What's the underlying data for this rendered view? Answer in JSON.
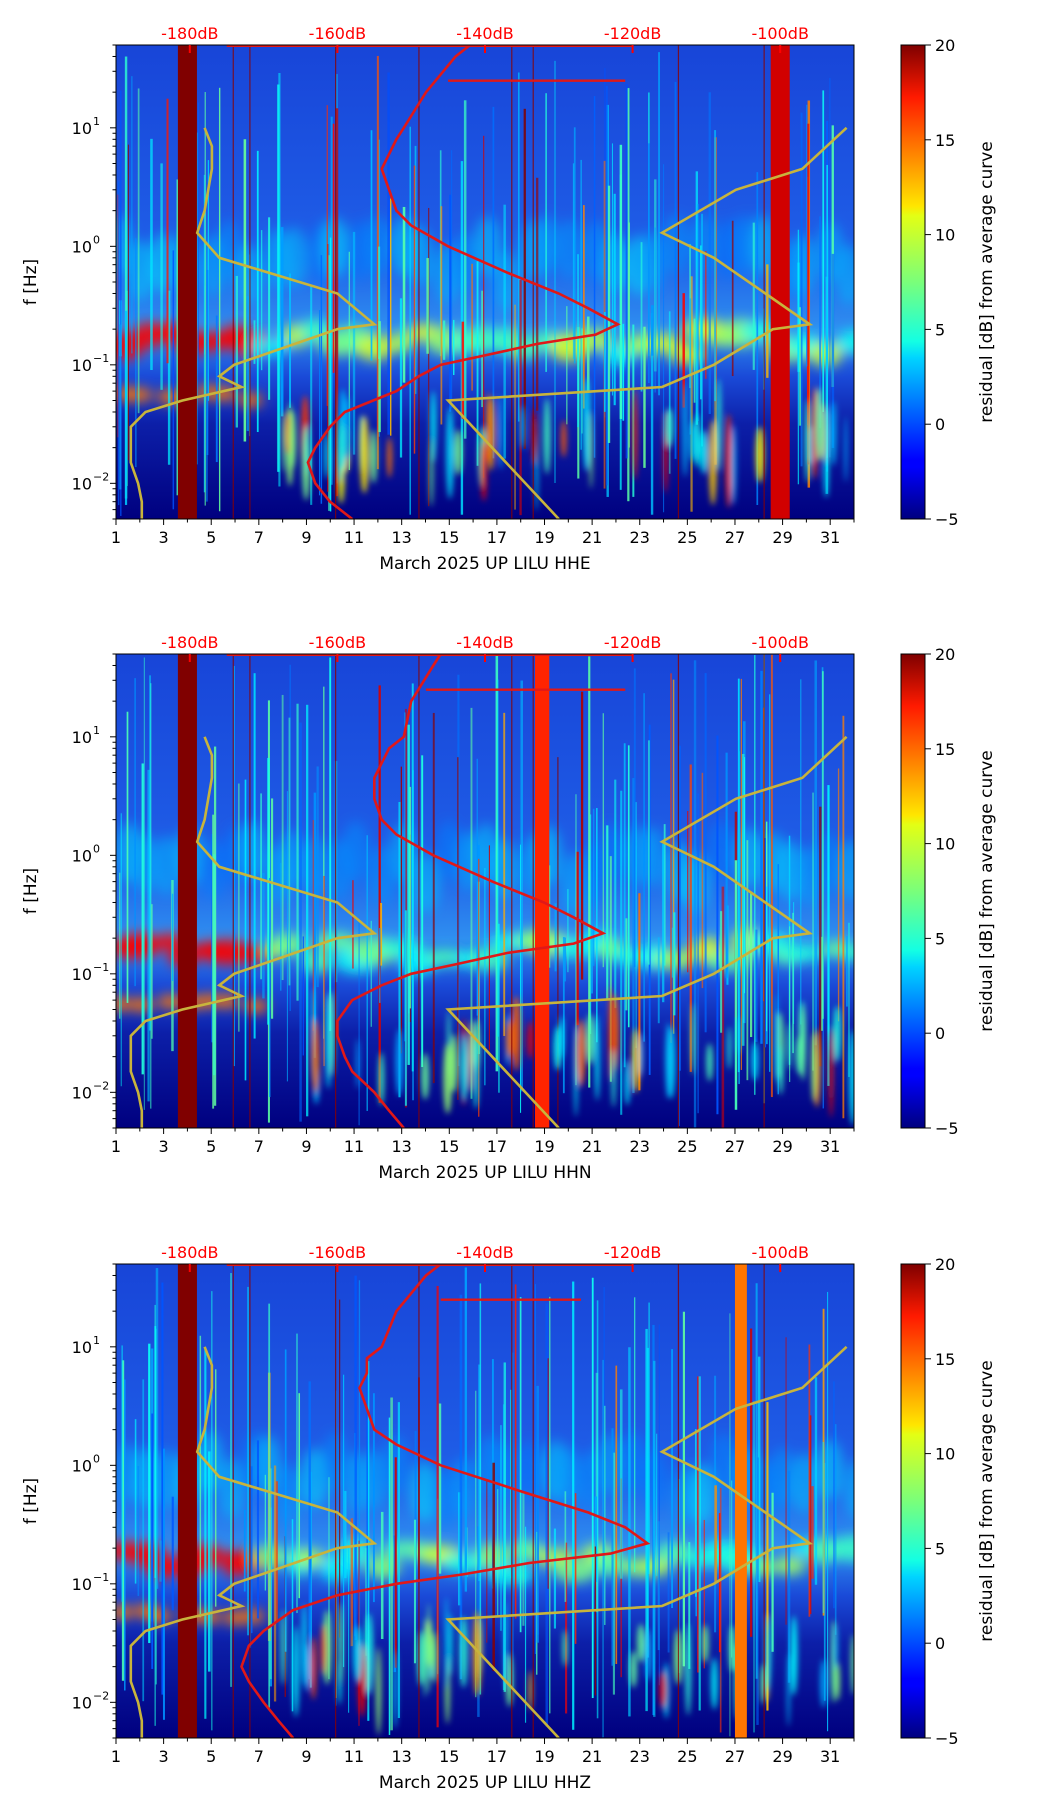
{
  "colors": {
    "accent": "#ff0000",
    "model": "#c8b43c",
    "psd": "#e01818",
    "background": "#ffffff"
  },
  "colormap": "jet",
  "chart_data": [
    {
      "type": "heatmap",
      "panel": "HHE",
      "xlabel": "March 2025 UP LILU  HHE",
      "ylabel": "f [Hz]",
      "colorbar_label": "residual [dB] from average curve",
      "colorbar_range": [
        -5,
        20
      ],
      "colorbar_ticks": [
        "−5",
        "0",
        "5",
        "10",
        "15",
        "20"
      ],
      "x_range": [
        1,
        32
      ],
      "x_ticks": [
        "1",
        "3",
        "5",
        "7",
        "9",
        "11",
        "13",
        "15",
        "17",
        "19",
        "21",
        "23",
        "25",
        "27",
        "29",
        "31"
      ],
      "y_range_hz": [
        0.005,
        50
      ],
      "y_ticks": [
        {
          "base": "10",
          "exp": "−2"
        },
        {
          "base": "10",
          "exp": "−1"
        },
        {
          "base": "10",
          "exp": "0"
        },
        {
          "base": "10",
          "exp": "1"
        }
      ],
      "top_axis_labels": [
        "-180dB",
        "-160dB",
        "-140dB",
        "-120dB",
        "-100dB"
      ],
      "top_axis_values_db": [
        -180,
        -160,
        -140,
        -120,
        -100
      ],
      "top_axis_range_db": [
        -190,
        -90
      ],
      "psd_curve": [
        [
          50,
          -142
        ],
        [
          40,
          -144
        ],
        [
          20,
          -148
        ],
        [
          10,
          -151
        ],
        [
          8,
          -152
        ],
        [
          6,
          -153
        ],
        [
          4.5,
          -154
        ],
        [
          3,
          -153
        ],
        [
          2,
          -152
        ],
        [
          1.5,
          -150
        ],
        [
          1,
          -145
        ],
        [
          0.6,
          -137
        ],
        [
          0.4,
          -130
        ],
        [
          0.3,
          -126
        ],
        [
          0.22,
          -122
        ],
        [
          0.18,
          -125
        ],
        [
          0.15,
          -133
        ],
        [
          0.12,
          -140
        ],
        [
          0.1,
          -146
        ],
        [
          0.08,
          -149
        ],
        [
          0.06,
          -152
        ],
        [
          0.04,
          -159
        ],
        [
          0.03,
          -161
        ],
        [
          0.02,
          -163
        ],
        [
          0.015,
          -164
        ],
        [
          0.01,
          -163
        ],
        [
          0.007,
          -161
        ],
        [
          0.005,
          -158
        ]
      ],
      "psd_spike": {
        "freq": 25,
        "from_db": -145,
        "to_db": -121
      },
      "model_low": [
        [
          10,
          -178
        ],
        [
          7,
          -177
        ],
        [
          4.5,
          -177
        ],
        [
          2,
          -178
        ],
        [
          1.3,
          -179
        ],
        [
          0.8,
          -176
        ],
        [
          0.4,
          -160
        ],
        [
          0.22,
          -155
        ],
        [
          0.2,
          -160
        ],
        [
          0.1,
          -174
        ],
        [
          0.08,
          -176
        ],
        [
          0.065,
          -173
        ],
        [
          0.05,
          -181
        ],
        [
          0.04,
          -186
        ],
        [
          0.03,
          -188
        ],
        [
          0.02,
          -188
        ],
        [
          0.015,
          -188
        ],
        [
          0.01,
          -187
        ],
        [
          0.007,
          -186.5
        ],
        [
          0.005,
          -186.5
        ]
      ],
      "model_high": [
        [
          10,
          -91
        ],
        [
          4.5,
          -97
        ],
        [
          3,
          -106
        ],
        [
          1.3,
          -116
        ],
        [
          0.8,
          -109
        ],
        [
          0.4,
          -102
        ],
        [
          0.22,
          -96
        ],
        [
          0.2,
          -101
        ],
        [
          0.1,
          -109
        ],
        [
          0.065,
          -116
        ],
        [
          0.05,
          -145
        ],
        [
          0.005,
          -130
        ]
      ],
      "hot_columns": [
        {
          "x": [
            3.6,
            4.4
          ],
          "intensity": 20
        },
        {
          "x": [
            28.5,
            29.3
          ],
          "intensity": 18
        }
      ]
    },
    {
      "type": "heatmap",
      "panel": "HHN",
      "xlabel": "March 2025 UP LILU  HHN",
      "ylabel": "f [Hz]",
      "colorbar_label": "residual [dB] from average curve",
      "colorbar_range": [
        -5,
        20
      ],
      "colorbar_ticks": [
        "−5",
        "0",
        "5",
        "10",
        "15",
        "20"
      ],
      "x_range": [
        1,
        32
      ],
      "x_ticks": [
        "1",
        "3",
        "5",
        "7",
        "9",
        "11",
        "13",
        "15",
        "17",
        "19",
        "21",
        "23",
        "25",
        "27",
        "29",
        "31"
      ],
      "y_range_hz": [
        0.005,
        50
      ],
      "y_ticks": [
        {
          "base": "10",
          "exp": "−2"
        },
        {
          "base": "10",
          "exp": "−1"
        },
        {
          "base": "10",
          "exp": "0"
        },
        {
          "base": "10",
          "exp": "1"
        }
      ],
      "top_axis_labels": [
        "-180dB",
        "-160dB",
        "-140dB",
        "-120dB",
        "-100dB"
      ],
      "top_axis_values_db": [
        -180,
        -160,
        -140,
        -120,
        -100
      ],
      "top_axis_range_db": [
        -190,
        -90
      ],
      "psd_curve": [
        [
          50,
          -146
        ],
        [
          40,
          -147
        ],
        [
          20,
          -150
        ],
        [
          10,
          -151
        ],
        [
          8,
          -153
        ],
        [
          6,
          -154
        ],
        [
          4.5,
          -155
        ],
        [
          3,
          -155
        ],
        [
          2,
          -154
        ],
        [
          1.5,
          -152
        ],
        [
          1,
          -147
        ],
        [
          0.6,
          -139
        ],
        [
          0.4,
          -132
        ],
        [
          0.3,
          -128
        ],
        [
          0.22,
          -124
        ],
        [
          0.18,
          -128
        ],
        [
          0.15,
          -137
        ],
        [
          0.12,
          -144
        ],
        [
          0.1,
          -150
        ],
        [
          0.08,
          -154
        ],
        [
          0.06,
          -158
        ],
        [
          0.04,
          -160
        ],
        [
          0.03,
          -160
        ],
        [
          0.02,
          -159
        ],
        [
          0.015,
          -158
        ],
        [
          0.01,
          -155
        ],
        [
          0.007,
          -153
        ],
        [
          0.005,
          -151
        ]
      ],
      "psd_spike": {
        "freq": 25,
        "from_db": -148,
        "to_db": -121
      },
      "model_low": [
        [
          10,
          -178
        ],
        [
          7,
          -177
        ],
        [
          4.5,
          -177
        ],
        [
          2,
          -178
        ],
        [
          1.3,
          -179
        ],
        [
          0.8,
          -176
        ],
        [
          0.4,
          -160
        ],
        [
          0.22,
          -155
        ],
        [
          0.2,
          -160
        ],
        [
          0.1,
          -174
        ],
        [
          0.08,
          -176
        ],
        [
          0.065,
          -173
        ],
        [
          0.05,
          -181
        ],
        [
          0.04,
          -186
        ],
        [
          0.03,
          -188
        ],
        [
          0.02,
          -188
        ],
        [
          0.015,
          -188
        ],
        [
          0.01,
          -187
        ],
        [
          0.007,
          -186.5
        ],
        [
          0.005,
          -186.5
        ]
      ],
      "model_high": [
        [
          10,
          -91
        ],
        [
          4.5,
          -97
        ],
        [
          3,
          -106
        ],
        [
          1.3,
          -116
        ],
        [
          0.8,
          -109
        ],
        [
          0.4,
          -102
        ],
        [
          0.22,
          -96
        ],
        [
          0.2,
          -101
        ],
        [
          0.1,
          -109
        ],
        [
          0.065,
          -116
        ],
        [
          0.05,
          -145
        ],
        [
          0.005,
          -130
        ]
      ],
      "hot_columns": [
        {
          "x": [
            3.6,
            4.4
          ],
          "intensity": 20
        },
        {
          "x": [
            18.6,
            19.2
          ],
          "intensity": 16
        }
      ]
    },
    {
      "type": "heatmap",
      "panel": "HHZ",
      "xlabel": "March 2025 UP LILU  HHZ",
      "ylabel": "f [Hz]",
      "colorbar_label": "residual [dB] from average curve",
      "colorbar_range": [
        -5,
        20
      ],
      "colorbar_ticks": [
        "−5",
        "0",
        "5",
        "10",
        "15",
        "20"
      ],
      "x_range": [
        1,
        32
      ],
      "x_ticks": [
        "1",
        "3",
        "5",
        "7",
        "9",
        "11",
        "13",
        "15",
        "17",
        "19",
        "21",
        "23",
        "25",
        "27",
        "29",
        "31"
      ],
      "y_range_hz": [
        0.005,
        50
      ],
      "y_ticks": [
        {
          "base": "10",
          "exp": "−2"
        },
        {
          "base": "10",
          "exp": "−1"
        },
        {
          "base": "10",
          "exp": "0"
        },
        {
          "base": "10",
          "exp": "1"
        }
      ],
      "top_axis_labels": [
        "-180dB",
        "-160dB",
        "-140dB",
        "-120dB",
        "-100dB"
      ],
      "top_axis_values_db": [
        -180,
        -160,
        -140,
        -120,
        -100
      ],
      "top_axis_range_db": [
        -190,
        -90
      ],
      "psd_curve": [
        [
          50,
          -146
        ],
        [
          40,
          -148
        ],
        [
          20,
          -152
        ],
        [
          10,
          -154
        ],
        [
          8,
          -156
        ],
        [
          6,
          -156
        ],
        [
          4.5,
          -157
        ],
        [
          3,
          -156
        ],
        [
          2,
          -155
        ],
        [
          1.5,
          -152
        ],
        [
          1,
          -146
        ],
        [
          0.6,
          -135
        ],
        [
          0.4,
          -126
        ],
        [
          0.3,
          -121
        ],
        [
          0.22,
          -118
        ],
        [
          0.18,
          -123
        ],
        [
          0.15,
          -134
        ],
        [
          0.12,
          -143
        ],
        [
          0.1,
          -152
        ],
        [
          0.08,
          -160
        ],
        [
          0.06,
          -166
        ],
        [
          0.04,
          -170
        ],
        [
          0.03,
          -172
        ],
        [
          0.02,
          -173
        ],
        [
          0.015,
          -172
        ],
        [
          0.01,
          -170
        ],
        [
          0.007,
          -168
        ],
        [
          0.005,
          -166
        ]
      ],
      "psd_spike": {
        "freq": 25,
        "from_db": -146,
        "to_db": -127
      },
      "model_low": [
        [
          10,
          -178
        ],
        [
          7,
          -177
        ],
        [
          4.5,
          -177
        ],
        [
          2,
          -178
        ],
        [
          1.3,
          -179
        ],
        [
          0.8,
          -176
        ],
        [
          0.4,
          -160
        ],
        [
          0.22,
          -155
        ],
        [
          0.2,
          -160
        ],
        [
          0.1,
          -174
        ],
        [
          0.08,
          -176
        ],
        [
          0.065,
          -173
        ],
        [
          0.05,
          -181
        ],
        [
          0.04,
          -186
        ],
        [
          0.03,
          -188
        ],
        [
          0.02,
          -188
        ],
        [
          0.015,
          -188
        ],
        [
          0.01,
          -187
        ],
        [
          0.007,
          -186.5
        ],
        [
          0.005,
          -186.5
        ]
      ],
      "model_high": [
        [
          10,
          -91
        ],
        [
          4.5,
          -97
        ],
        [
          3,
          -106
        ],
        [
          1.3,
          -116
        ],
        [
          0.8,
          -109
        ],
        [
          0.4,
          -102
        ],
        [
          0.22,
          -96
        ],
        [
          0.2,
          -101
        ],
        [
          0.1,
          -109
        ],
        [
          0.065,
          -116
        ],
        [
          0.05,
          -145
        ],
        [
          0.005,
          -130
        ]
      ],
      "hot_columns": [
        {
          "x": [
            3.6,
            4.4
          ],
          "intensity": 20
        },
        {
          "x": [
            27.0,
            27.5
          ],
          "intensity": 14
        }
      ]
    }
  ]
}
